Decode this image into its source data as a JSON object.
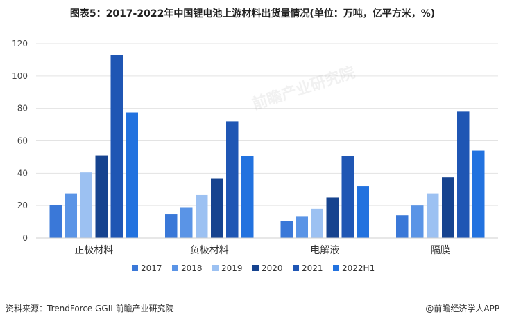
{
  "header": {
    "title": "图表5：2017-2022年中国锂电池上游材料出货量情况(单位：万吨，亿平方米，%)"
  },
  "footer": {
    "source": "资料来源：TrendForce  GGII 前瞻产业研究院",
    "brand": "@前瞻经济学人APP"
  },
  "watermark": {
    "text": "前瞻产业研究院"
  },
  "colors": {
    "2017": "#3a78d8",
    "2018": "#5a94e6",
    "2019": "#9cc1f2",
    "2020": "#16438f",
    "2021": "#1f56b4",
    "2022H1": "#2272df"
  },
  "chart_data": {
    "type": "bar",
    "title": "图表5：2017-2022年中国锂电池上游材料出货量情况(单位：万吨，亿平方米，%)",
    "categories": [
      "正极材料",
      "负极材料",
      "电解液",
      "隔膜"
    ],
    "series": [
      {
        "name": "2017",
        "values": [
          20.5,
          14.5,
          10.5,
          14.0
        ]
      },
      {
        "name": "2018",
        "values": [
          27.5,
          19.0,
          13.5,
          20.0
        ]
      },
      {
        "name": "2019",
        "values": [
          40.5,
          26.5,
          18.0,
          27.5
        ]
      },
      {
        "name": "2020",
        "values": [
          51.0,
          36.5,
          25.0,
          37.5
        ]
      },
      {
        "name": "2021",
        "values": [
          113.0,
          72.0,
          50.5,
          78.0
        ]
      },
      {
        "name": "2022H1",
        "values": [
          77.5,
          50.5,
          32.0,
          54.0
        ]
      }
    ],
    "yticks": [
      0,
      20,
      40,
      60,
      80,
      100,
      120
    ],
    "ylim": [
      0,
      120
    ],
    "xlabel": "",
    "ylabel": "",
    "grid": true,
    "legend": "bottom"
  }
}
